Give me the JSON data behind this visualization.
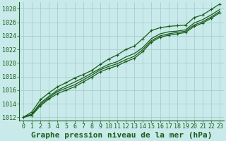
{
  "title": "Graphe pression niveau de la mer (hPa)",
  "background_color": "#c8eaea",
  "grid_color": "#aacece",
  "plot_bg": "#c8eaea",
  "line_color": "#1a5c1a",
  "xlim": [
    -0.5,
    23.5
  ],
  "ylim": [
    1011.5,
    1029
  ],
  "xticks": [
    0,
    1,
    2,
    3,
    4,
    5,
    6,
    7,
    8,
    9,
    10,
    11,
    12,
    13,
    14,
    15,
    16,
    17,
    18,
    19,
    20,
    21,
    22,
    23
  ],
  "yticks": [
    1012,
    1014,
    1016,
    1018,
    1020,
    1022,
    1024,
    1026,
    1028
  ],
  "series": [
    {
      "y": [
        1012.0,
        1012.8,
        1014.6,
        1015.6,
        1016.5,
        1017.1,
        1017.8,
        1018.3,
        1018.9,
        1019.8,
        1020.6,
        1021.2,
        1022.0,
        1022.5,
        1023.6,
        1024.8,
        1025.2,
        1025.4,
        1025.5,
        1025.6,
        1026.7,
        1027.1,
        1027.9,
        1028.7
      ],
      "marker": true,
      "lw": 0.9
    },
    {
      "y": [
        1012.0,
        1012.5,
        1014.1,
        1015.1,
        1016.0,
        1016.6,
        1017.2,
        1017.8,
        1018.5,
        1019.2,
        1019.8,
        1020.2,
        1020.9,
        1021.4,
        1022.3,
        1023.6,
        1024.3,
        1024.6,
        1024.7,
        1024.9,
        1025.9,
        1026.4,
        1027.1,
        1027.9
      ],
      "marker": false,
      "lw": 0.9
    },
    {
      "y": [
        1012.0,
        1012.4,
        1013.9,
        1014.9,
        1015.8,
        1016.3,
        1016.8,
        1017.5,
        1018.2,
        1019.0,
        1019.5,
        1019.9,
        1020.5,
        1021.0,
        1022.0,
        1023.3,
        1024.0,
        1024.3,
        1024.5,
        1024.7,
        1025.6,
        1026.1,
        1026.8,
        1027.6
      ],
      "marker": false,
      "lw": 0.9
    },
    {
      "y": [
        1012.0,
        1012.3,
        1013.7,
        1014.7,
        1015.5,
        1016.0,
        1016.5,
        1017.2,
        1017.9,
        1018.7,
        1019.2,
        1019.6,
        1020.2,
        1020.7,
        1021.7,
        1023.1,
        1023.8,
        1024.1,
        1024.3,
        1024.5,
        1025.4,
        1025.9,
        1026.6,
        1027.4
      ],
      "marker": true,
      "lw": 0.9
    }
  ],
  "title_fontsize": 8,
  "tick_fontsize": 6,
  "tick_color": "#1a5c1a",
  "axis_color": "#1a5c1a",
  "marker_size": 3.5,
  "marker_ew": 0.8
}
